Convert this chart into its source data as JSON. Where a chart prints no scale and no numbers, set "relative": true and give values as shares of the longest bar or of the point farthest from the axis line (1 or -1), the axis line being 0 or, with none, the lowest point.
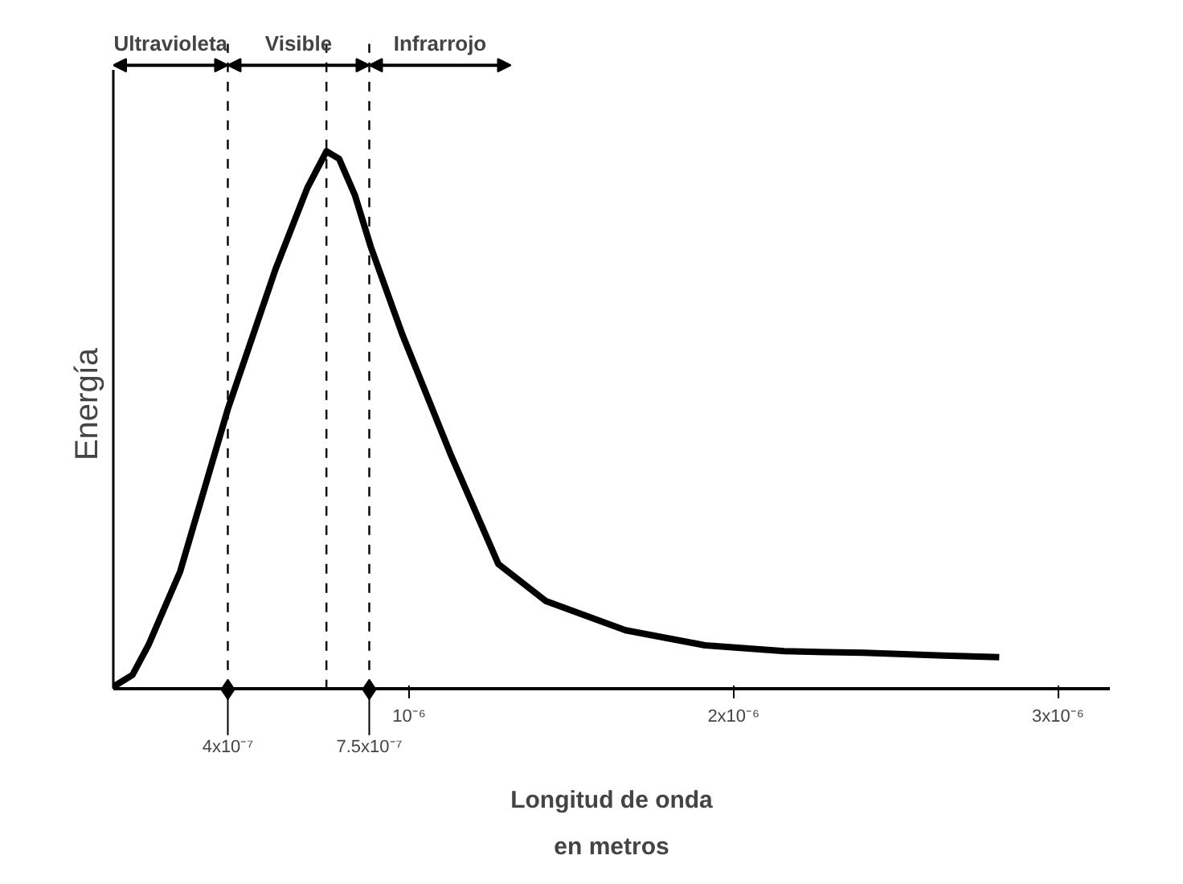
{
  "chart_data": {
    "type": "line",
    "relative": true,
    "ylabel": "Energía",
    "xlabel": "Longitud de onda\nen metros",
    "x": [
      8.8e-08,
      1.47e-07,
      1.96e-07,
      2.94e-07,
      4.41e-07,
      5.88e-07,
      6.86e-07,
      7.45e-07,
      7.84e-07,
      8.33e-07,
      8.82e-07,
      9.8e-07,
      1.127e-06,
      1.275e-06,
      1.422e-06,
      1.667e-06,
      1.912e-06,
      2.157e-06,
      2.402e-06,
      2.647e-06,
      2.819e-06
    ],
    "series": [
      {
        "color": "#000000",
        "values": [
          0.005,
          0.027,
          0.082,
          0.219,
          0.521,
          0.781,
          0.932,
          1.0,
          0.986,
          0.918,
          0.822,
          0.658,
          0.438,
          0.233,
          0.164,
          0.11,
          0.082,
          0.071,
          0.068,
          0.063,
          0.06
        ]
      }
    ],
    "xlim": [
      8.8e-08,
      3.16e-06
    ],
    "xticks": [
      {
        "value": 1e-06,
        "label": "10⁻⁶"
      },
      {
        "value": 2e-06,
        "label": "2x10⁻⁶"
      },
      {
        "value": 3e-06,
        "label": "3x10⁻⁶"
      }
    ],
    "ref_lines": [
      {
        "axis": "x",
        "value": 4.41e-07,
        "label": "4x10⁻⁷",
        "line_style": "dashed"
      },
      {
        "axis": "x",
        "value": 7.45e-07,
        "line_style": "dashed"
      },
      {
        "axis": "x",
        "value": 8.77e-07,
        "label": "7.5x10⁻⁷",
        "line_style": "dashed"
      }
    ],
    "annotations": [
      "Ultravioleta",
      "Visible",
      "Infrarrojo"
    ],
    "grid": false,
    "marker": "none",
    "line_style": "solid"
  }
}
